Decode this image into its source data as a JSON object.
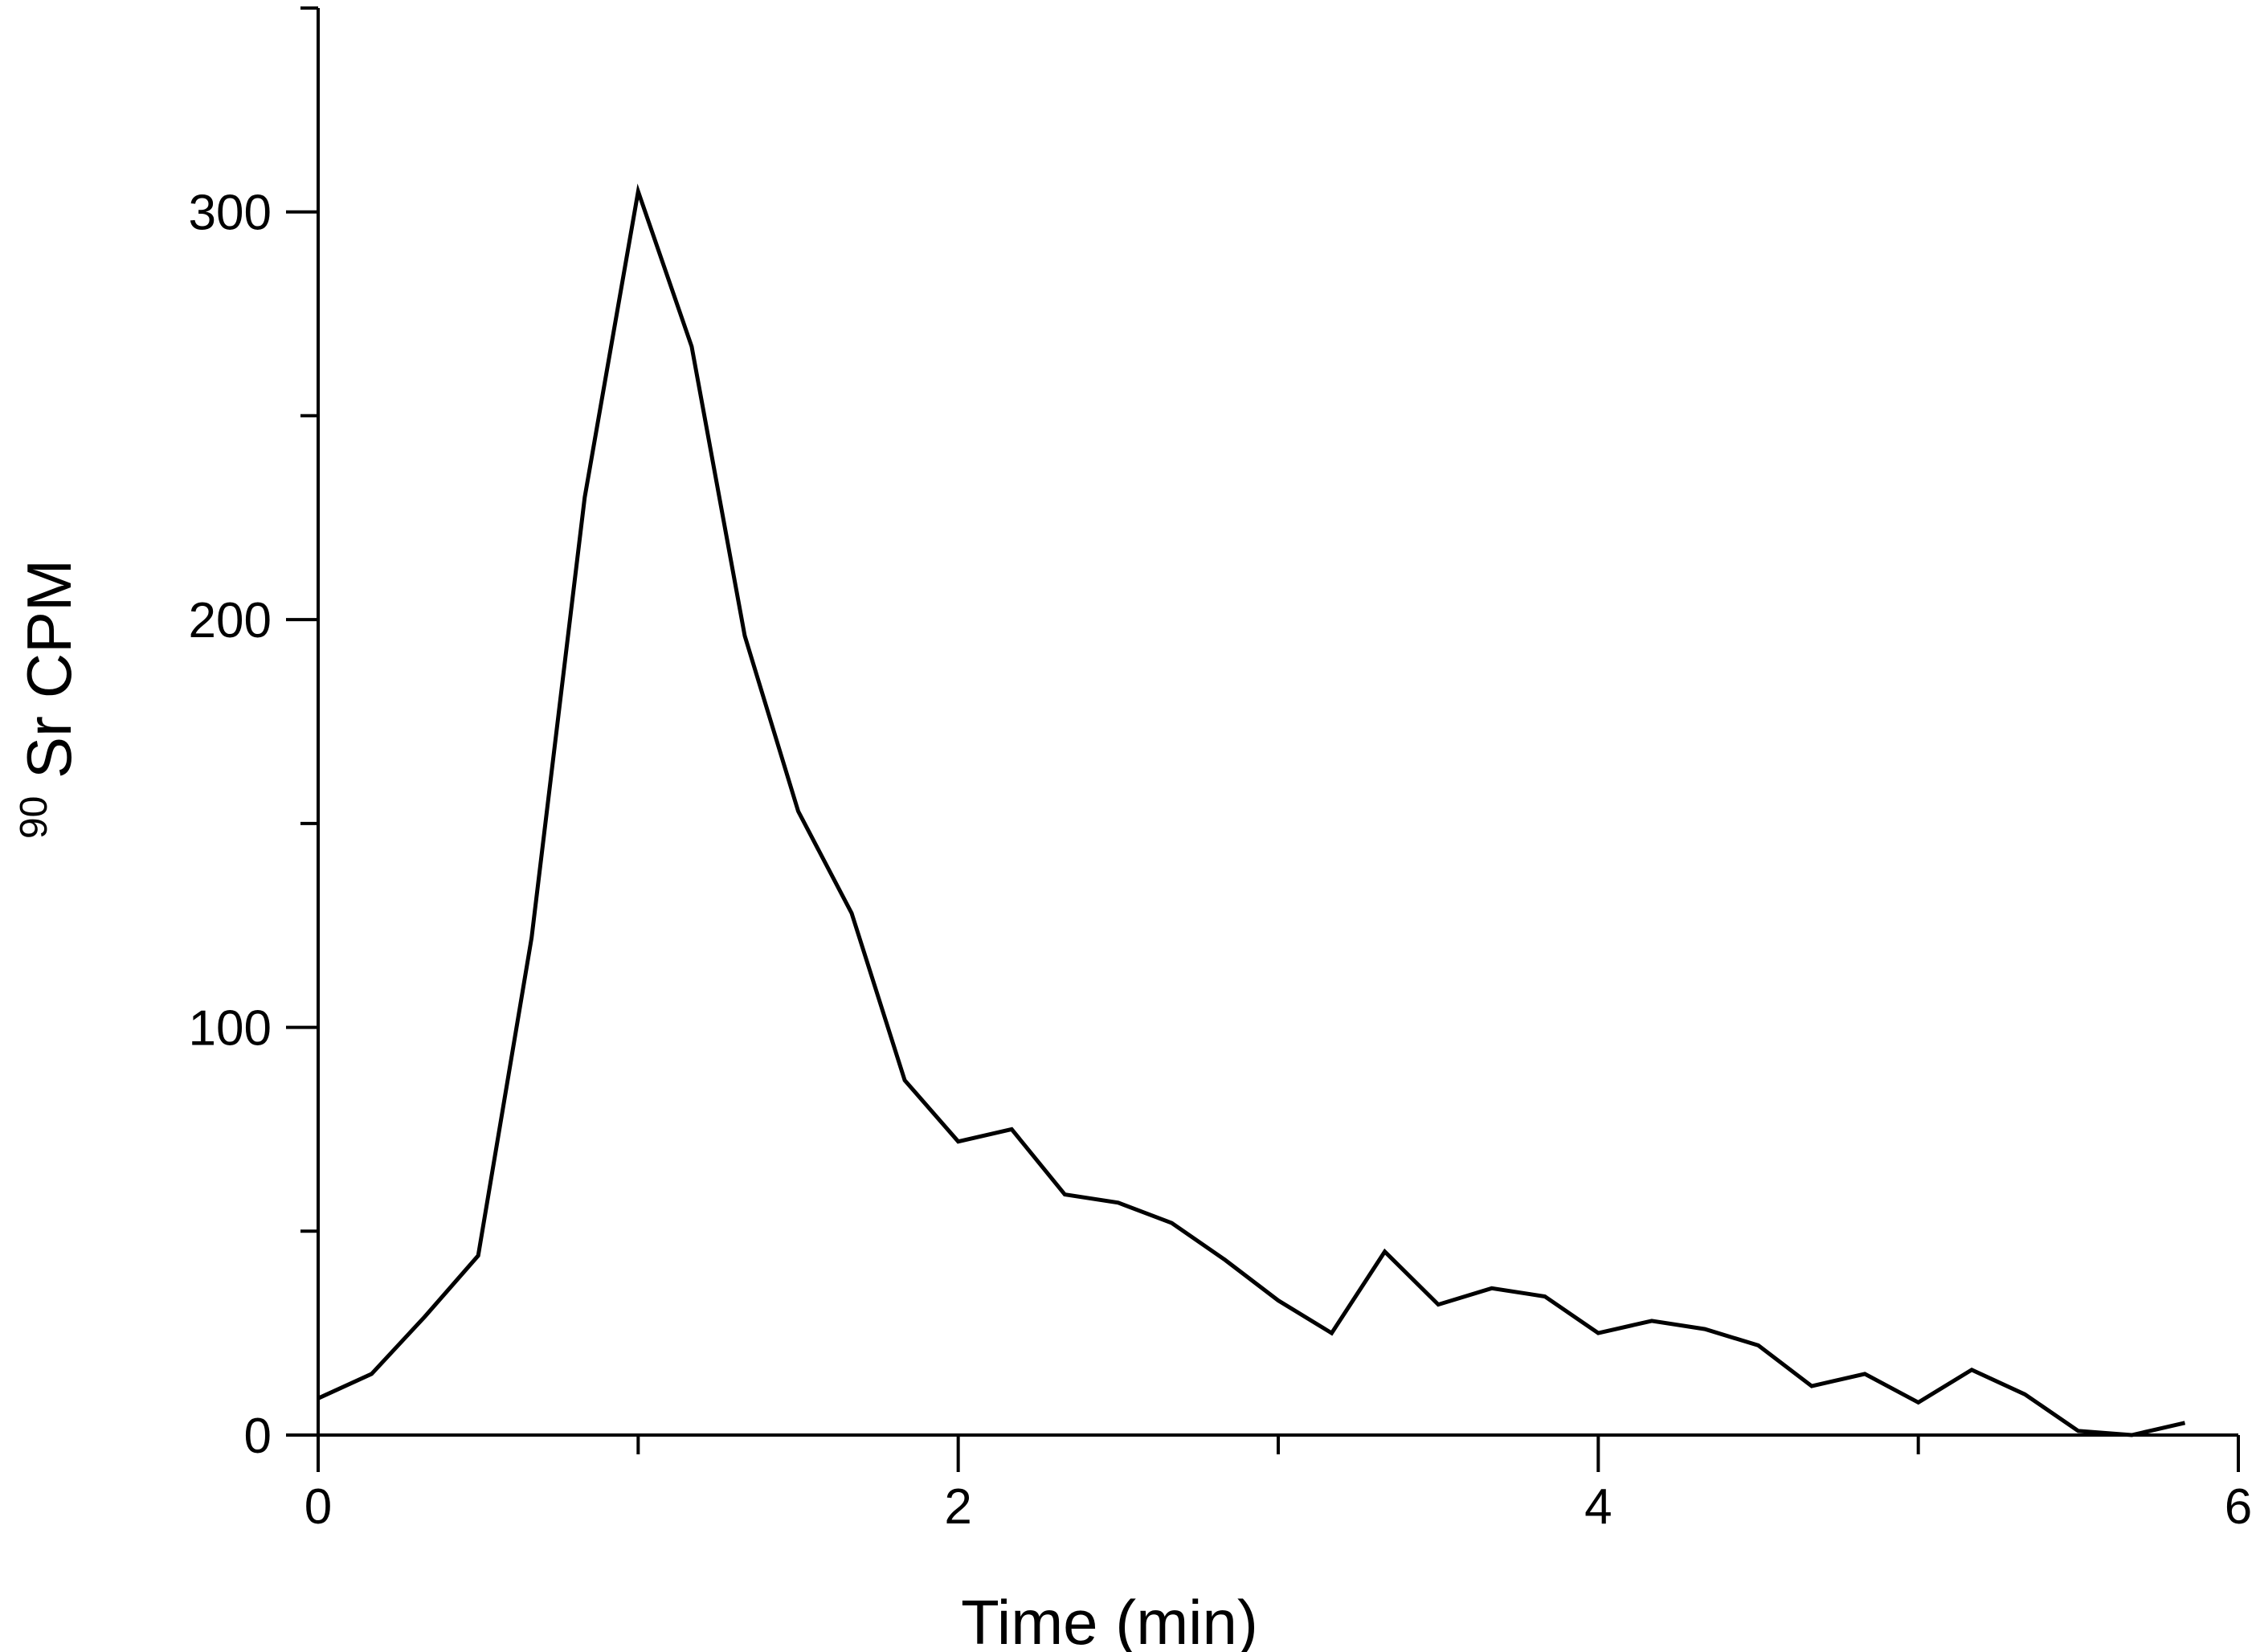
{
  "chart_data": {
    "type": "line",
    "xlabel": "Time (min)",
    "ylabel": "Sr CPM",
    "ylabel_superscript": "90",
    "xlim": [
      0,
      6
    ],
    "ylim": [
      0,
      350
    ],
    "x_ticks": [
      0,
      2,
      4,
      6
    ],
    "x_minor_ticks": [
      1,
      3,
      5
    ],
    "y_ticks": [
      0,
      100,
      200,
      300
    ],
    "y_minor_ticks": [
      50,
      150,
      250,
      350
    ],
    "grid": false,
    "legend": "none",
    "line_color": "#000000",
    "series": [
      {
        "x": [
          0,
          0.167,
          0.333,
          0.5,
          0.667,
          0.833,
          1.0,
          1.167,
          1.333,
          1.5,
          1.667,
          1.833,
          2.0,
          2.167,
          2.333,
          2.5,
          2.667,
          2.833,
          3.0,
          3.167,
          3.333,
          3.5,
          3.667,
          3.833,
          4.0,
          4.167,
          4.333,
          4.5,
          4.667,
          4.833,
          5.0,
          5.167,
          5.333,
          5.5,
          5.667,
          5.833
        ],
        "y": [
          9,
          15,
          29,
          44,
          122,
          230,
          305,
          267,
          196,
          153,
          128,
          87,
          72,
          75,
          59,
          57,
          52,
          43,
          33,
          25,
          45,
          32,
          36,
          34,
          25,
          28,
          26,
          22,
          12,
          15,
          8,
          16,
          10,
          1,
          0,
          3
        ]
      }
    ]
  }
}
